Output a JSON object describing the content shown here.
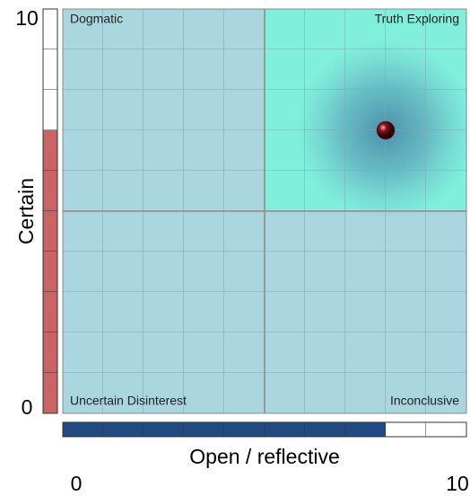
{
  "chart_data": {
    "type": "scatter",
    "x": [
      8
    ],
    "y": [
      7
    ],
    "xlim": [
      0,
      10
    ],
    "ylim": [
      0,
      10
    ],
    "xticks": [
      0,
      10
    ],
    "yticks": [
      0,
      10
    ],
    "xlabel": "Open / reflective",
    "ylabel": "Certain",
    "quadrants": {
      "top_left": "Dogmatic",
      "top_right": "Truth Exploring",
      "bottom_left": "Uncertain Disinterest",
      "bottom_right": "Inconclusive"
    },
    "point_color": "#7a0c1c",
    "x_bar_color": "#1f4a82",
    "y_bar_color": "#c86464"
  }
}
